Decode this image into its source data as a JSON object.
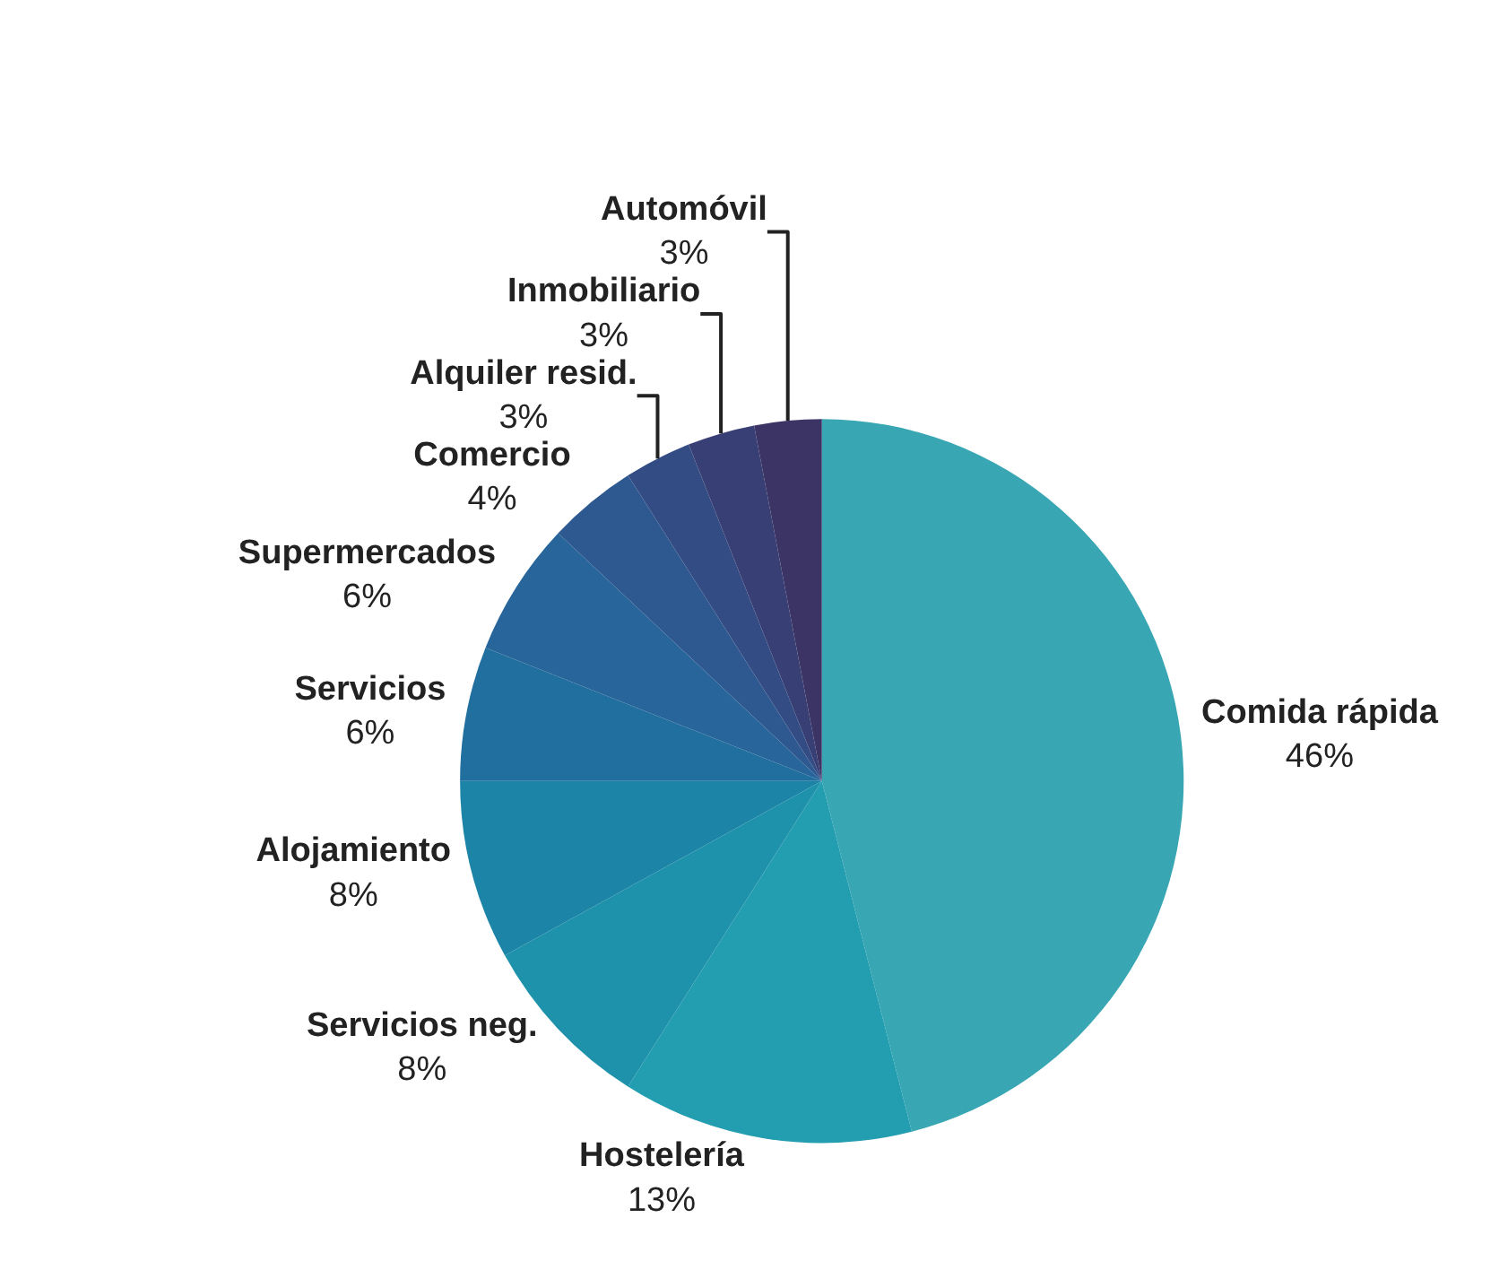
{
  "chart_data": {
    "type": "pie",
    "categories": [
      "Comida rápida",
      "Hostelería",
      "Servicios neg.",
      "Alojamiento",
      "Servicios",
      "Supermercados",
      "Comercio",
      "Alquiler resid.",
      "Inmobiliario",
      "Automóvil"
    ],
    "values": [
      46,
      13,
      8,
      8,
      6,
      6,
      4,
      3,
      3,
      3
    ],
    "value_labels": [
      "46%",
      "13%",
      "8%",
      "8%",
      "6%",
      "6%",
      "4%",
      "3%",
      "3%",
      "3%"
    ],
    "colors": [
      "#38a6b3",
      "#239db0",
      "#1e92ab",
      "#1c84a6",
      "#216f9e",
      "#28659a",
      "#2e5990",
      "#344c84",
      "#383f75",
      "#3b3464"
    ],
    "legend": false
  }
}
